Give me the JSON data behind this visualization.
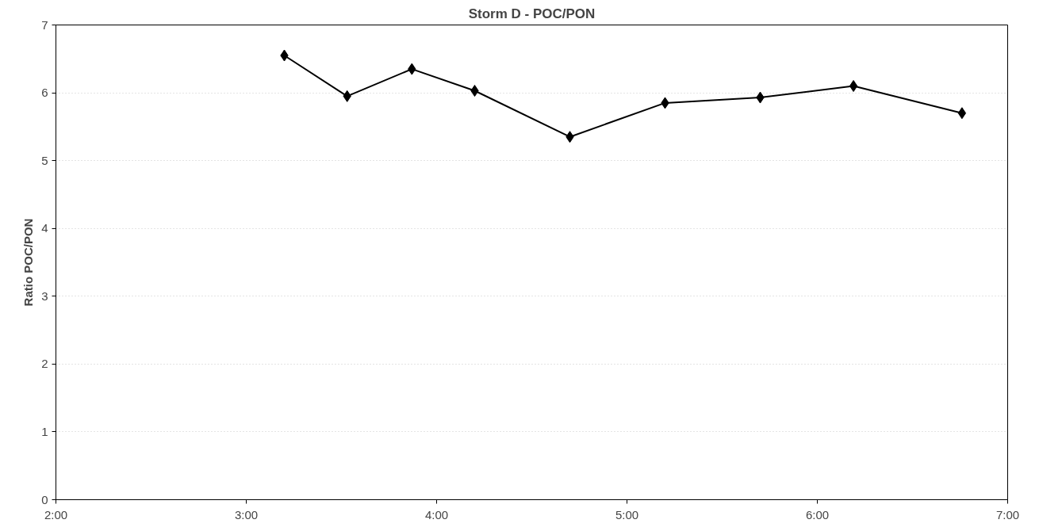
{
  "chart_data": {
    "type": "line",
    "title": "Storm D - POC/PON",
    "ylabel": "Ratio POC/PON",
    "x": [
      3.2,
      3.53,
      3.87,
      4.2,
      4.7,
      5.2,
      5.7,
      6.19,
      6.76
    ],
    "series": [
      {
        "color": "#000000",
        "values": [
          6.55,
          5.95,
          6.35,
          6.03,
          5.35,
          5.85,
          5.93,
          6.1,
          5.7
        ]
      }
    ],
    "xlim": [
      2,
      7
    ],
    "xticks": [
      {
        "value": 2,
        "label": "2:00"
      },
      {
        "value": 3,
        "label": "3:00"
      },
      {
        "value": 4,
        "label": "4:00"
      },
      {
        "value": 5,
        "label": "5:00"
      },
      {
        "value": 6,
        "label": "6:00"
      },
      {
        "value": 7,
        "label": "7:00"
      }
    ],
    "ylim": [
      0,
      7
    ],
    "yticks": [
      0,
      1,
      2,
      3,
      4,
      5,
      6,
      7
    ],
    "grid": "y",
    "marker": "diamond",
    "line_style": "solid"
  }
}
